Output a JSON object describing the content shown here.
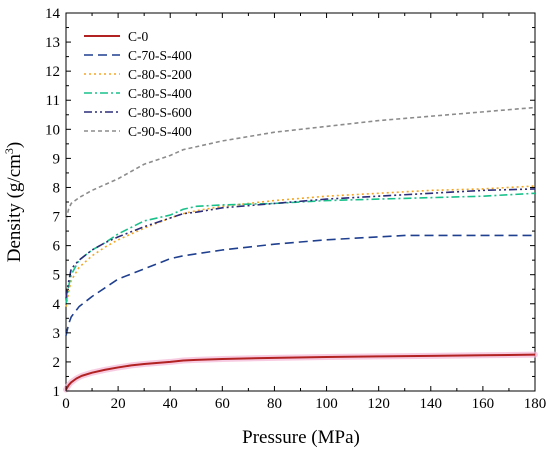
{
  "chart_data": {
    "type": "line",
    "title": "",
    "xlabel": "Pressure (MPa)",
    "ylabel": {
      "prefix": "Density (g/cm",
      "superscript": "3",
      "suffix": ")"
    },
    "xlim": [
      0,
      180
    ],
    "ylim": [
      1,
      14
    ],
    "xticks": [
      0,
      20,
      40,
      60,
      80,
      100,
      120,
      140,
      160,
      180
    ],
    "yticks": [
      1,
      2,
      3,
      4,
      5,
      6,
      7,
      8,
      9,
      10,
      11,
      12,
      13,
      14
    ],
    "grid": false,
    "legend_position": "top-left",
    "series": [
      {
        "name": "C-0",
        "color": "#b22222",
        "style": "solid",
        "x": [
          0,
          1,
          2,
          4,
          6,
          10,
          15,
          20,
          25,
          30,
          40,
          45,
          50,
          60,
          80,
          100,
          120,
          140,
          160,
          180
        ],
        "y": [
          1.05,
          1.2,
          1.3,
          1.43,
          1.52,
          1.63,
          1.73,
          1.81,
          1.88,
          1.93,
          2.0,
          2.05,
          2.07,
          2.1,
          2.14,
          2.17,
          2.19,
          2.21,
          2.23,
          2.25
        ]
      },
      {
        "name": "C-70-S-400",
        "color": "#1f3f8f",
        "style": "dashed",
        "x": [
          0,
          1,
          2,
          5,
          10,
          15,
          20,
          30,
          40,
          45,
          60,
          80,
          100,
          120,
          130,
          140,
          160,
          180
        ],
        "y": [
          2.9,
          3.3,
          3.55,
          3.9,
          4.25,
          4.55,
          4.85,
          5.2,
          5.55,
          5.65,
          5.85,
          6.05,
          6.2,
          6.3,
          6.35,
          6.35,
          6.35,
          6.35
        ]
      },
      {
        "name": "C-80-S-200",
        "color": "#f5a623",
        "style": "dotted",
        "x": [
          0,
          1,
          2,
          5,
          10,
          15,
          20,
          30,
          40,
          45,
          50,
          60,
          80,
          100,
          120,
          140,
          160,
          180
        ],
        "y": [
          3.9,
          4.4,
          4.8,
          5.25,
          5.65,
          5.95,
          6.2,
          6.6,
          6.95,
          7.1,
          7.2,
          7.35,
          7.55,
          7.7,
          7.8,
          7.9,
          7.95,
          8.05
        ]
      },
      {
        "name": "C-80-S-400",
        "color": "#19c08a",
        "style": "dashdot",
        "x": [
          0,
          1,
          2,
          5,
          10,
          15,
          20,
          30,
          40,
          45,
          50,
          60,
          80,
          100,
          120,
          140,
          160,
          180
        ],
        "y": [
          4.0,
          4.6,
          5.0,
          5.5,
          5.85,
          6.1,
          6.4,
          6.85,
          7.05,
          7.25,
          7.35,
          7.4,
          7.45,
          7.55,
          7.6,
          7.65,
          7.7,
          7.8
        ]
      },
      {
        "name": "C-80-S-600",
        "color": "#2c2c7a",
        "style": "dashdotdot",
        "x": [
          0,
          1,
          2,
          5,
          10,
          15,
          20,
          30,
          40,
          45,
          50,
          60,
          80,
          100,
          120,
          140,
          160,
          180
        ],
        "y": [
          4.2,
          4.75,
          5.2,
          5.5,
          5.85,
          6.1,
          6.3,
          6.65,
          6.95,
          7.1,
          7.15,
          7.3,
          7.45,
          7.6,
          7.7,
          7.8,
          7.9,
          7.95
        ]
      },
      {
        "name": "C-90-S-400",
        "color": "#8c8c8c",
        "style": "shortdash",
        "x": [
          0,
          1,
          2,
          5,
          10,
          15,
          20,
          30,
          40,
          45,
          50,
          60,
          80,
          100,
          120,
          140,
          160,
          180
        ],
        "y": [
          6.9,
          7.25,
          7.45,
          7.65,
          7.9,
          8.1,
          8.3,
          8.8,
          9.1,
          9.3,
          9.4,
          9.6,
          9.9,
          10.1,
          10.3,
          10.45,
          10.6,
          10.75
        ]
      }
    ]
  }
}
